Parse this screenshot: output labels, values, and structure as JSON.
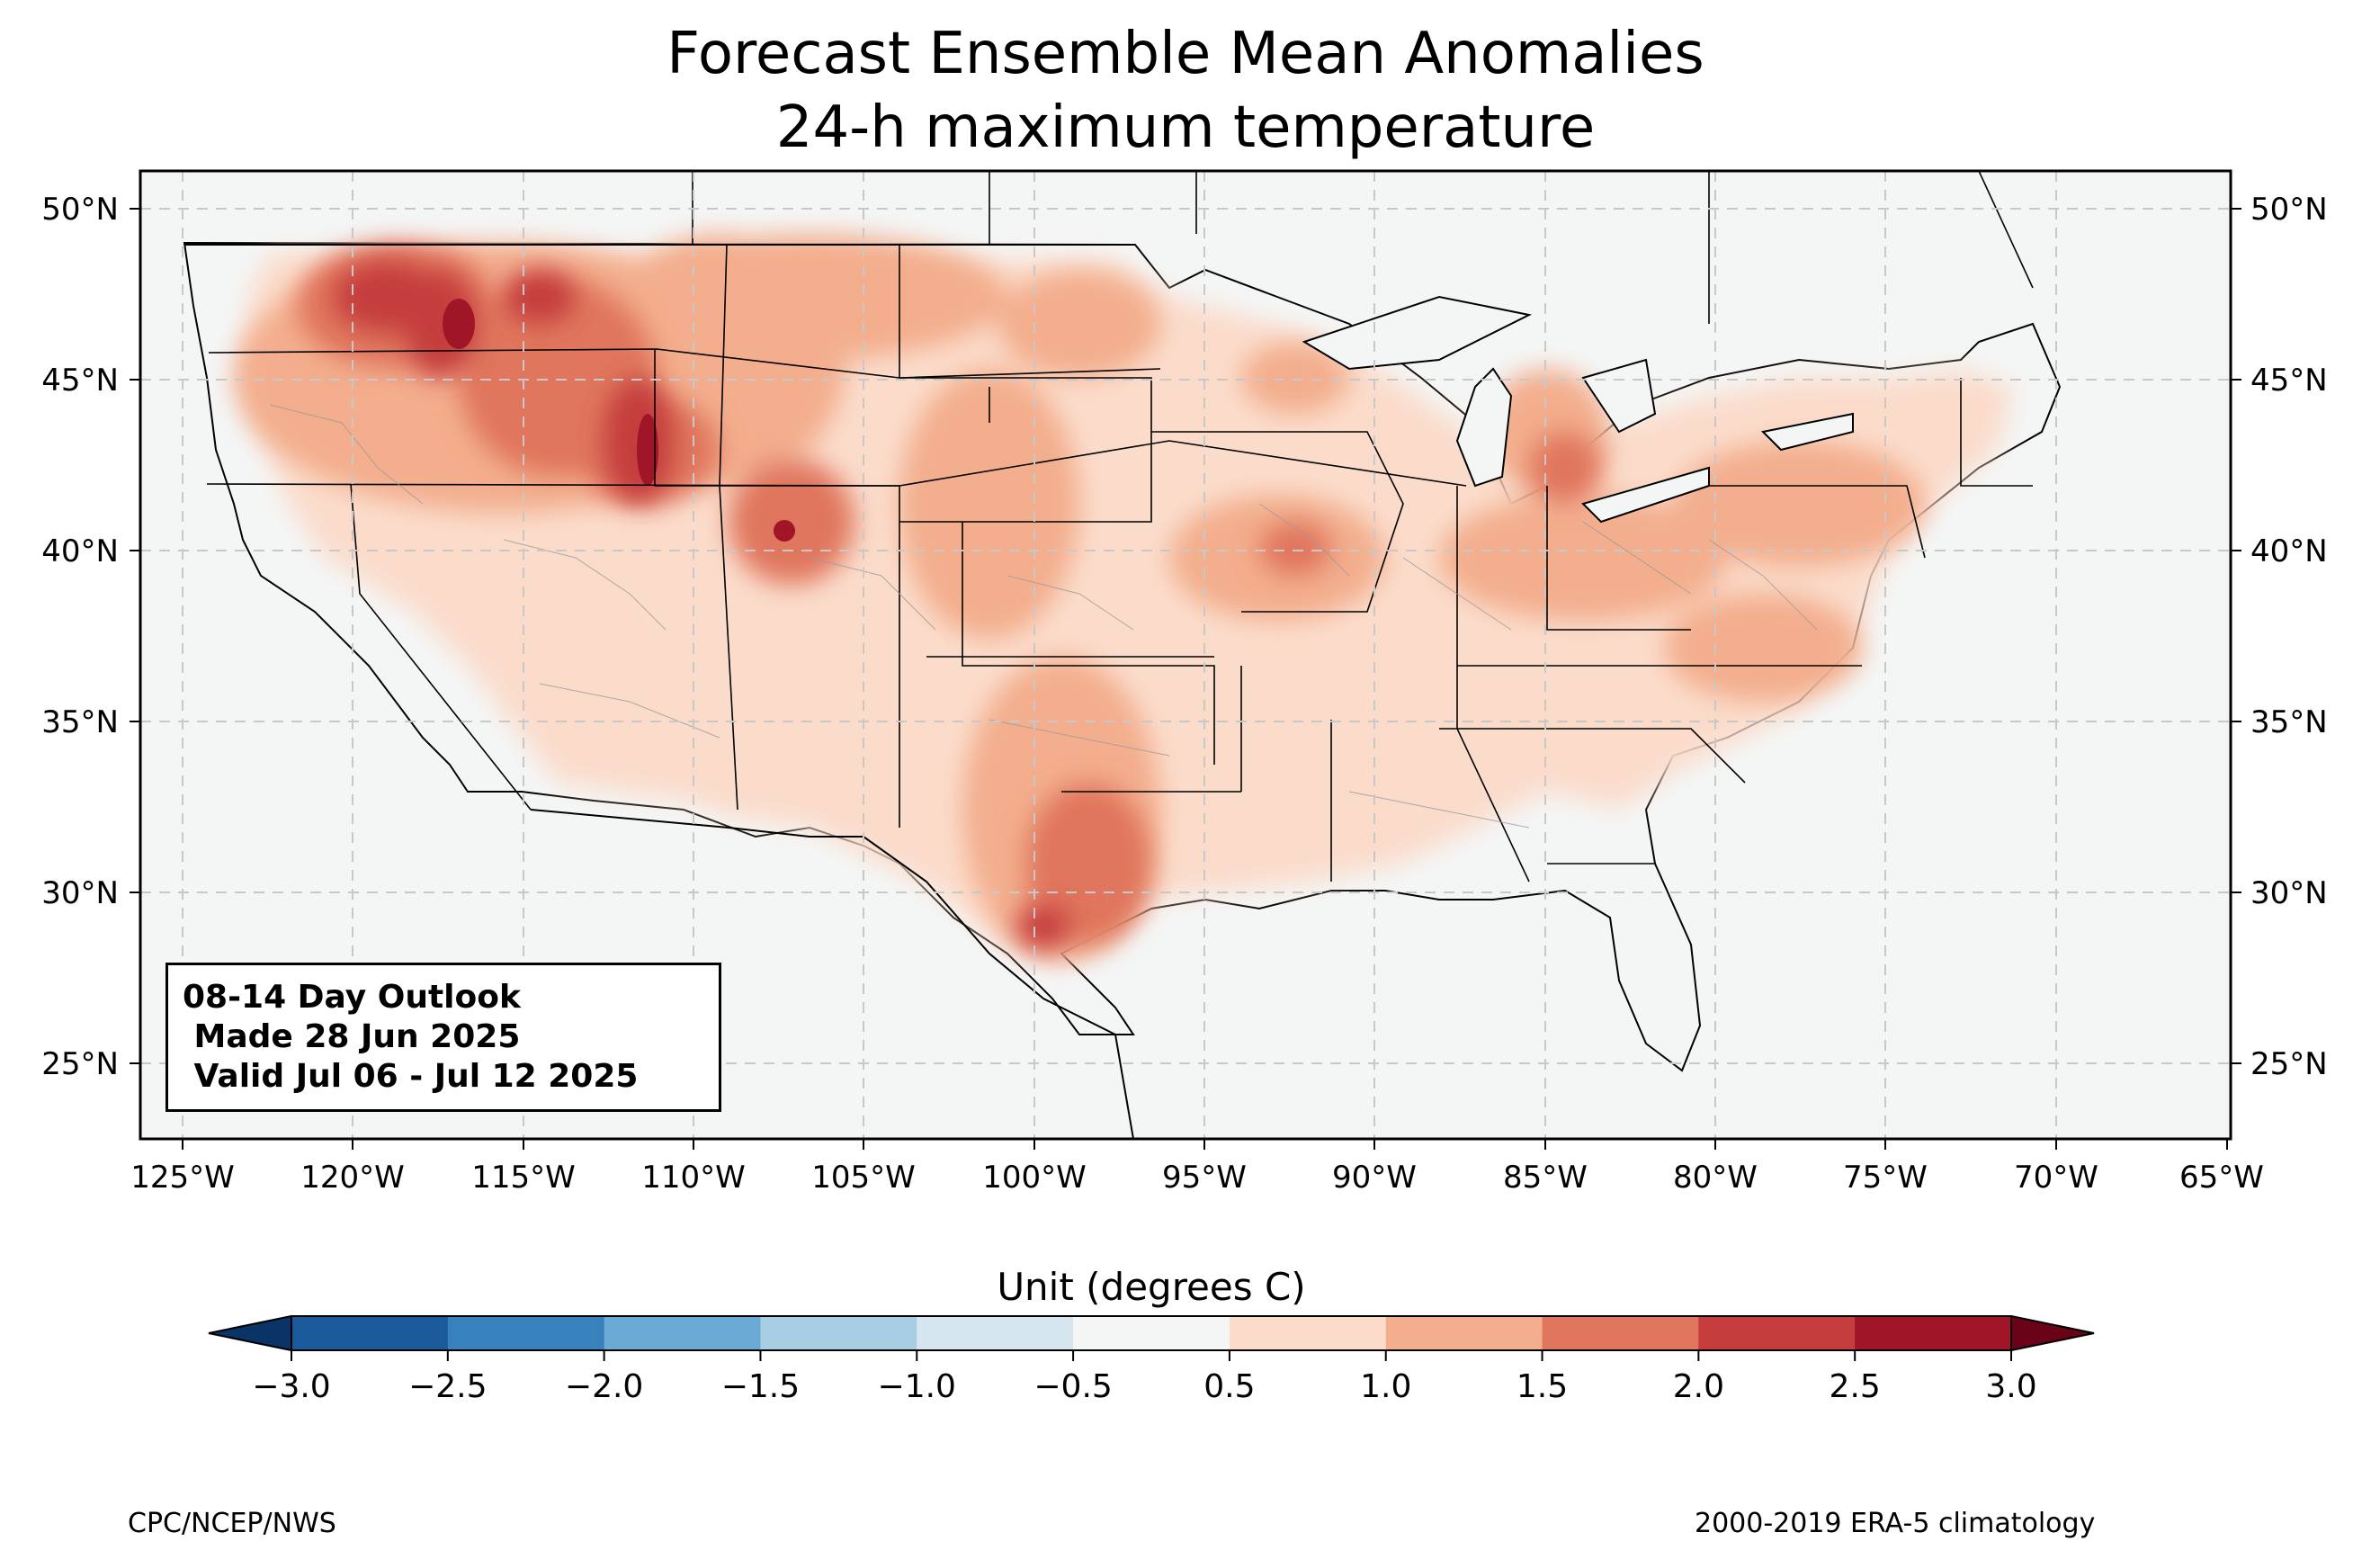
{
  "title_line1": "Forecast Ensemble Mean Anomalies",
  "title_line2": "24-h maximum temperature",
  "outlook": {
    "line1": "08-14 Day Outlook",
    "line2": " Made 28 Jun 2025",
    "line3": " Valid Jul 06 - Jul 12 2025"
  },
  "lon_labels": [
    "125°W",
    "120°W",
    "115°W",
    "110°W",
    "105°W",
    "100°W",
    "95°W",
    "90°W",
    "85°W",
    "80°W",
    "75°W",
    "70°W",
    "65°W"
  ],
  "lat_labels": [
    "50°N",
    "45°N",
    "40°N",
    "35°N",
    "30°N",
    "25°N"
  ],
  "colorbar": {
    "unit": "Unit (degrees C)",
    "ticks": [
      "−3.0",
      "−2.5",
      "−2.0",
      "−1.5",
      "−1.0",
      "−0.5",
      "0.5",
      "1.0",
      "1.5",
      "2.0",
      "2.5",
      "3.0"
    ],
    "colors": [
      "#1b5a9a",
      "#3781bc",
      "#6aaad4",
      "#a8cee4",
      "#d6e6ef",
      "#f4f6f6",
      "#fbdccb",
      "#f3ae8d",
      "#e0765d",
      "#c53d3d",
      "#a01527"
    ],
    "under_color": "#0a3467",
    "over_color": "#6a0218"
  },
  "footer_left": "CPC/NCEP/NWS",
  "footer_right": "2000-2019 ERA-5 climatology"
}
